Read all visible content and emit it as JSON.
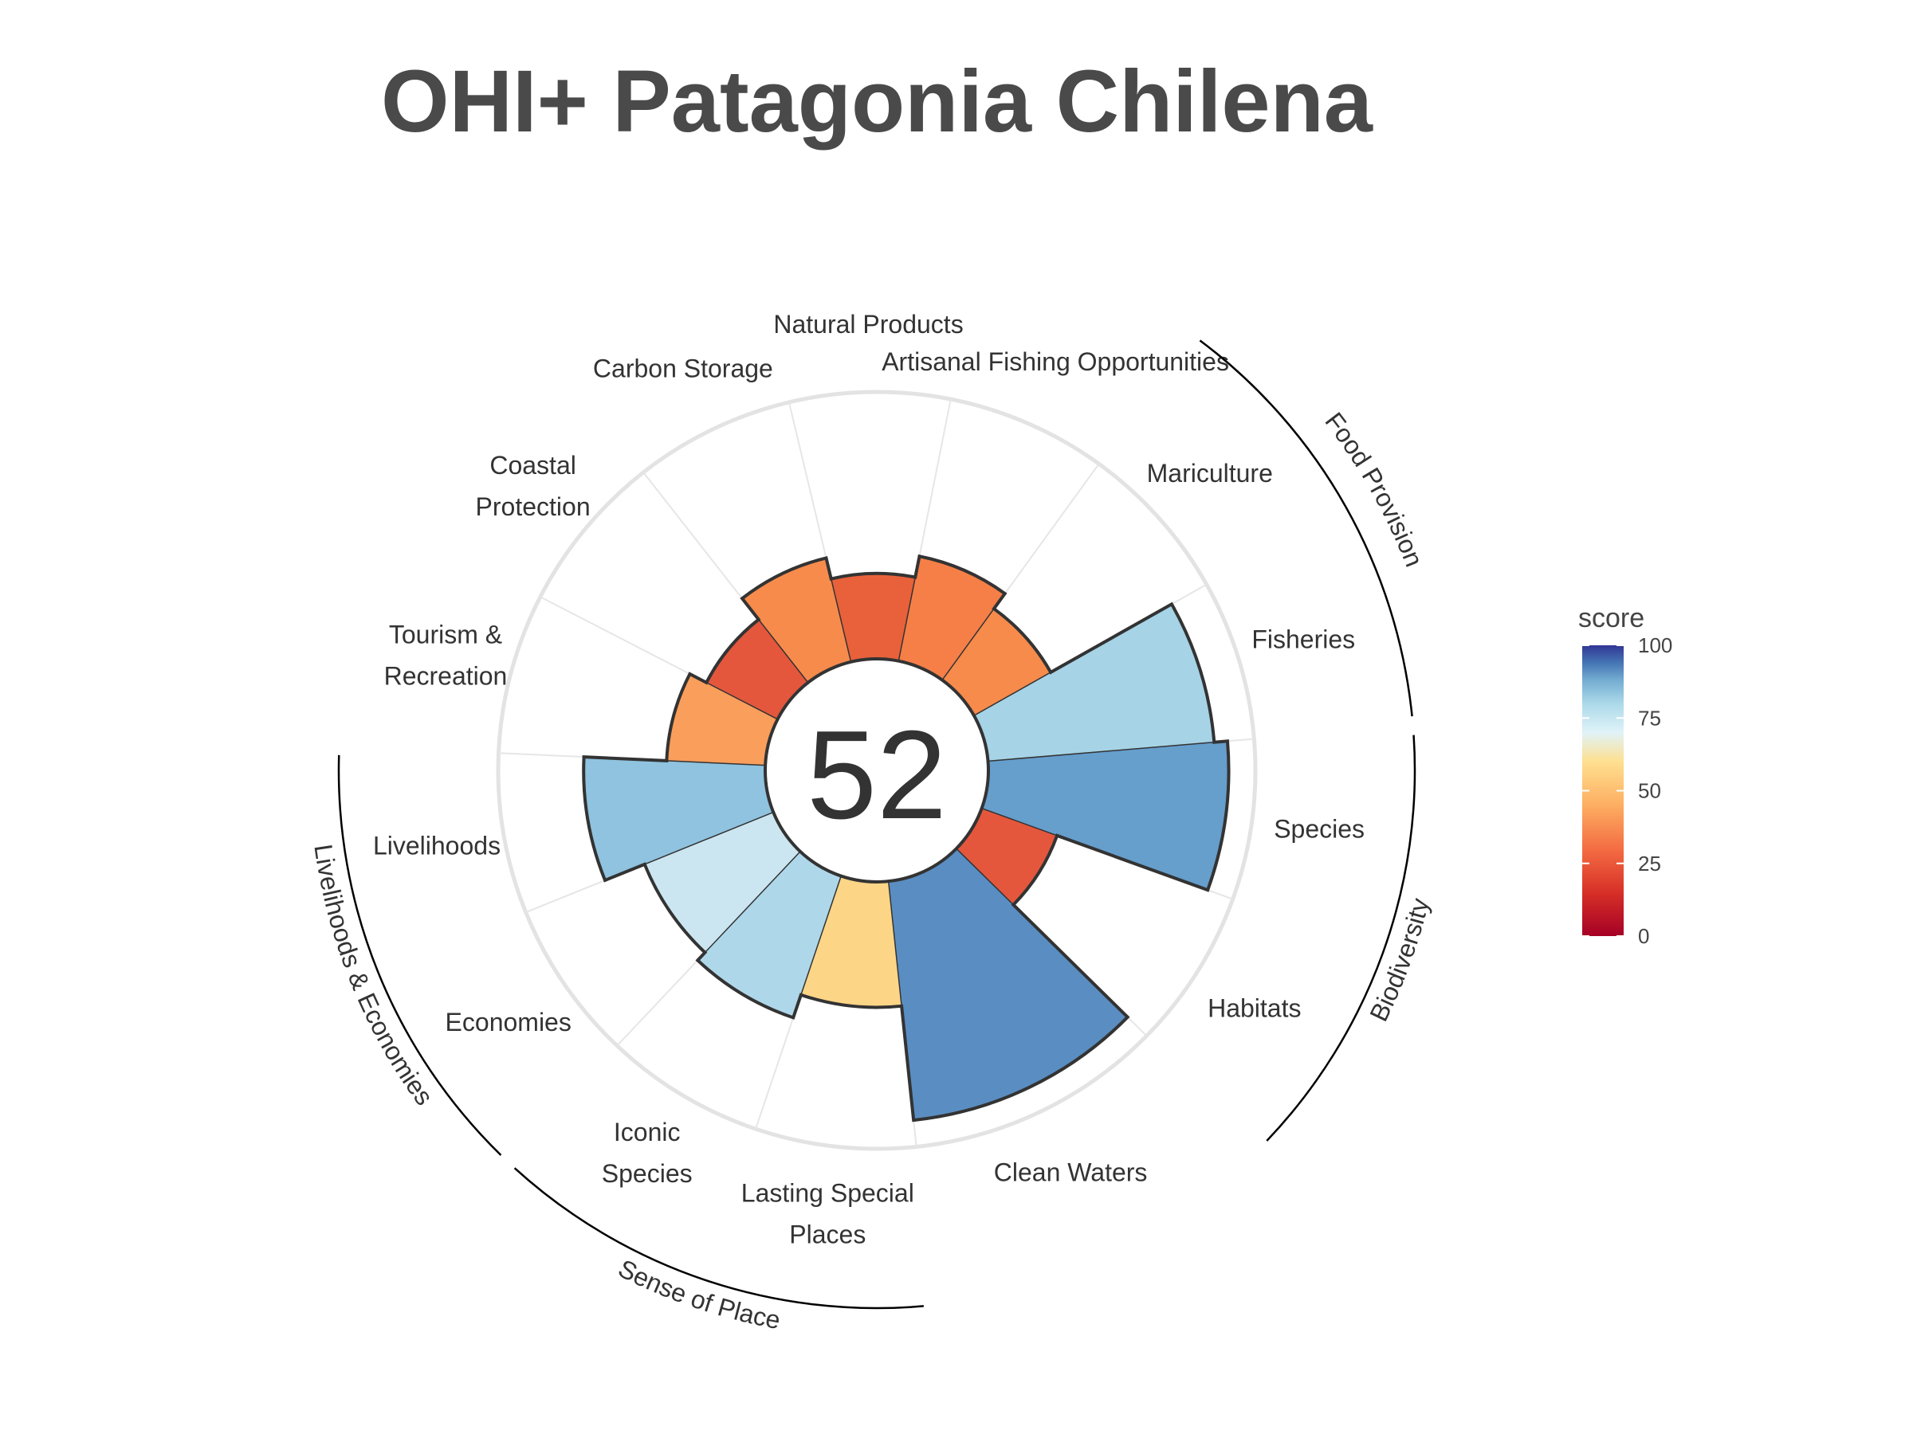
{
  "title": "OHI+ Patagonia Chilena",
  "center_score": "52",
  "chart_data": {
    "type": "polar_bar",
    "title": "OHI+ Patagonia Chilena",
    "ylim": [
      0,
      100
    ],
    "grid": true,
    "categories": [
      "Natural Products",
      "Artisanal Fishing Opportunities",
      "Mariculture",
      "Fisheries",
      "Species",
      "Habitats",
      "Clean Waters",
      "Lasting Special Places",
      "Iconic Species",
      "Economies",
      "Livelihoods",
      "Tourism & Recreation",
      "Coastal Protection",
      "Carbon Storage"
    ],
    "values": [
      32,
      40,
      33,
      85,
      90,
      30,
      90,
      47,
      56,
      52,
      68,
      37,
      30,
      40
    ],
    "weights": [
      1,
      1,
      1,
      1,
      1,
      1,
      1.6,
      1,
      1,
      1,
      1,
      1,
      1,
      1
    ],
    "bar_colors": [
      "#e8613a",
      "#f57f47",
      "#f78b4c",
      "#a6d3e6",
      "#669ecc",
      "#e4573d",
      "#5a8ec2",
      "#fdd587",
      "#aed8ea",
      "#cce6f1",
      "#8fc3df",
      "#fa9e5b",
      "#e4573d",
      "#f78b4c"
    ],
    "goal_labels": [
      {
        "lines": [
          "Natural Products"
        ]
      },
      {
        "lines": [
          "Artisanal Fishing Opportunities"
        ]
      },
      {
        "lines": [
          "Mariculture"
        ]
      },
      {
        "lines": [
          "Fisheries"
        ]
      },
      {
        "lines": [
          "Species"
        ]
      },
      {
        "lines": [
          "Habitats"
        ]
      },
      {
        "lines": [
          "Clean Waters"
        ]
      },
      {
        "lines": [
          "Lasting Special",
          "Places"
        ]
      },
      {
        "lines": [
          "Iconic",
          "Species"
        ]
      },
      {
        "lines": [
          "Economies"
        ]
      },
      {
        "lines": [
          "Livelihoods"
        ]
      },
      {
        "lines": [
          "Tourism &",
          "Recreation"
        ]
      },
      {
        "lines": [
          "Coastal",
          "Protection"
        ]
      },
      {
        "lines": [
          "Carbon Storage"
        ]
      }
    ],
    "groups": [
      {
        "name": "Food Provision",
        "members": [
          "Mariculture",
          "Fisheries"
        ]
      },
      {
        "name": "Biodiversity",
        "members": [
          "Species",
          "Habitats"
        ]
      },
      {
        "name": "Sense of Place",
        "members": [
          "Lasting Special Places",
          "Iconic Species"
        ]
      },
      {
        "name": "Livelihoods & Economies",
        "members": [
          "Economies",
          "Livelihoods"
        ]
      }
    ],
    "legend": {
      "title": "score",
      "ticks": [
        0,
        25,
        50,
        75,
        100
      ],
      "placement": "right",
      "gradient": [
        {
          "value": 0,
          "color": "#a50026"
        },
        {
          "value": 15,
          "color": "#d73027"
        },
        {
          "value": 30,
          "color": "#f46d43"
        },
        {
          "value": 45,
          "color": "#fdae61"
        },
        {
          "value": 60,
          "color": "#fee090"
        },
        {
          "value": 70,
          "color": "#e0f3f8"
        },
        {
          "value": 80,
          "color": "#abd9e9"
        },
        {
          "value": 88,
          "color": "#74add1"
        },
        {
          "value": 94,
          "color": "#4575b4"
        },
        {
          "value": 100,
          "color": "#313695"
        }
      ]
    }
  }
}
